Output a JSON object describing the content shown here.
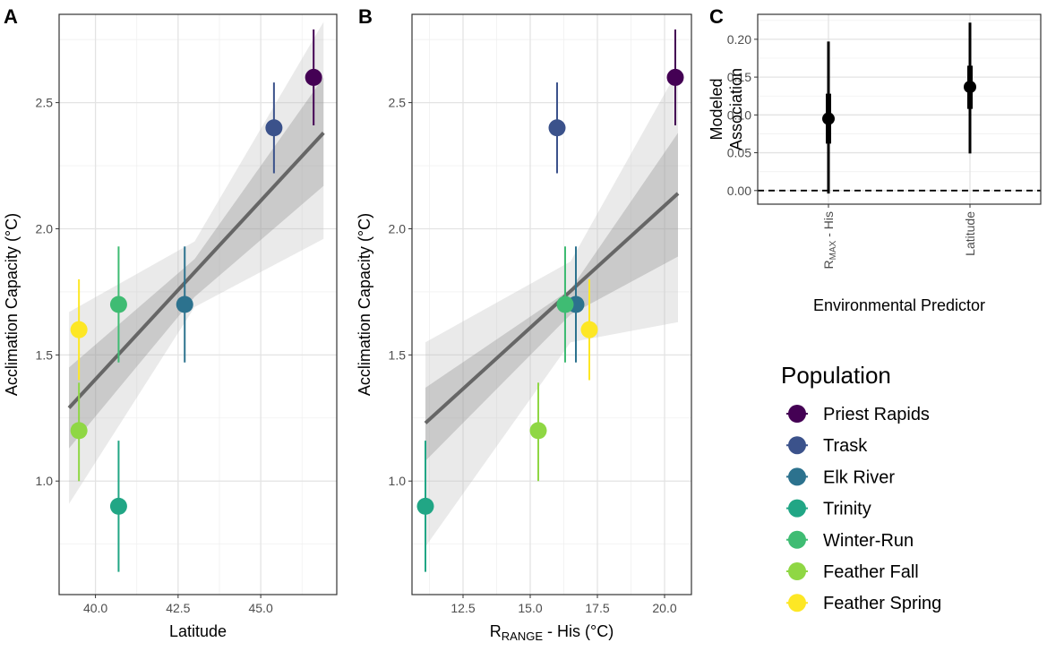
{
  "figure": {
    "legend": {
      "title": "Population",
      "items": [
        {
          "label": "Priest Rapids",
          "color": "#440154"
        },
        {
          "label": "Trask",
          "color": "#3b528b"
        },
        {
          "label": "Elk River",
          "color": "#2c728e"
        },
        {
          "label": "Trinity",
          "color": "#21a685"
        },
        {
          "label": "Winter-Run",
          "color": "#3fbc73"
        },
        {
          "label": "Feather Fall",
          "color": "#8fd744"
        },
        {
          "label": "Feather Spring",
          "color": "#fde725"
        }
      ]
    }
  },
  "chart_data": [
    {
      "panel": "A",
      "type": "scatter",
      "xlabel": "Latitude",
      "ylabel": "Acclimation Capacity (°C)",
      "xlim": [
        38.9,
        47.3
      ],
      "ylim": [
        0.55,
        2.85
      ],
      "x_ticks": [
        "40.0",
        "42.5",
        "45.0"
      ],
      "y_ticks": [
        "1.0",
        "1.5",
        "2.0",
        "2.5"
      ],
      "x_tick_values": [
        40.0,
        42.5,
        45.0
      ],
      "y_tick_values": [
        1.0,
        1.5,
        2.0,
        2.5
      ],
      "points": [
        {
          "population": "Priest Rapids",
          "x": 46.6,
          "y": 2.6,
          "lo": 2.41,
          "hi": 2.79
        },
        {
          "population": "Trask",
          "x": 45.4,
          "y": 2.4,
          "lo": 2.22,
          "hi": 2.58
        },
        {
          "population": "Elk River",
          "x": 42.7,
          "y": 1.7,
          "lo": 1.47,
          "hi": 1.93
        },
        {
          "population": "Trinity",
          "x": 40.7,
          "y": 0.9,
          "lo": 0.64,
          "hi": 1.16
        },
        {
          "population": "Winter-Run",
          "x": 40.7,
          "y": 1.7,
          "lo": 1.47,
          "hi": 1.93
        },
        {
          "population": "Feather Fall",
          "x": 39.5,
          "y": 1.2,
          "lo": 1.0,
          "hi": 1.39
        },
        {
          "population": "Feather Spring",
          "x": 39.5,
          "y": 1.6,
          "lo": 1.4,
          "hi": 1.8
        }
      ],
      "fit": {
        "x": [
          39.2,
          46.9
        ],
        "y": [
          1.29,
          2.38
        ]
      },
      "ribbon_outer": {
        "x": [
          39.2,
          43.0,
          46.9
        ],
        "upper": [
          1.67,
          1.95,
          2.82
        ],
        "lower": [
          0.91,
          1.69,
          1.96
        ]
      },
      "ribbon_inner": {
        "x": [
          39.2,
          43.0,
          46.9
        ],
        "upper": [
          1.45,
          1.88,
          2.6
        ],
        "lower": [
          1.13,
          1.73,
          2.17
        ]
      }
    },
    {
      "panel": "B",
      "type": "scatter",
      "xlabel_main": "R",
      "xlabel_sub": "RANGE",
      "xlabel_rest": " - His (°C)",
      "ylabel": "Acclimation Capacity (°C)",
      "xlim": [
        10.6,
        21.0
      ],
      "ylim": [
        0.55,
        2.85
      ],
      "x_ticks": [
        "12.5",
        "15.0",
        "17.5",
        "20.0"
      ],
      "y_ticks": [
        "1.0",
        "1.5",
        "2.0",
        "2.5"
      ],
      "x_tick_values": [
        12.5,
        15.0,
        17.5,
        20.0
      ],
      "y_tick_values": [
        1.0,
        1.5,
        2.0,
        2.5
      ],
      "points": [
        {
          "population": "Priest Rapids",
          "x": 20.4,
          "y": 2.6,
          "lo": 2.41,
          "hi": 2.79
        },
        {
          "population": "Trask",
          "x": 16.0,
          "y": 2.4,
          "lo": 2.22,
          "hi": 2.58
        },
        {
          "population": "Elk River",
          "x": 16.7,
          "y": 1.7,
          "lo": 1.47,
          "hi": 1.93
        },
        {
          "population": "Trinity",
          "x": 11.1,
          "y": 0.9,
          "lo": 0.64,
          "hi": 1.16
        },
        {
          "population": "Winter-Run",
          "x": 16.3,
          "y": 1.7,
          "lo": 1.47,
          "hi": 1.93
        },
        {
          "population": "Feather Fall",
          "x": 15.3,
          "y": 1.2,
          "lo": 1.0,
          "hi": 1.39
        },
        {
          "population": "Feather Spring",
          "x": 17.2,
          "y": 1.6,
          "lo": 1.4,
          "hi": 1.8
        }
      ],
      "fit": {
        "x": [
          11.1,
          20.5
        ],
        "y": [
          1.23,
          2.14
        ]
      },
      "ribbon_outer": {
        "x": [
          11.1,
          16.5,
          20.5
        ],
        "upper": [
          1.55,
          1.87,
          2.63
        ],
        "lower": [
          0.74,
          1.55,
          1.63
        ]
      },
      "ribbon_inner": {
        "x": [
          11.1,
          16.5,
          20.5
        ],
        "upper": [
          1.37,
          1.76,
          2.38
        ],
        "lower": [
          1.08,
          1.66,
          1.89
        ]
      }
    },
    {
      "panel": "C",
      "type": "scatter",
      "xlabel": "Environmental Predictor",
      "ylabel_line1": "Modeled",
      "ylabel_line2": "Association",
      "ylim": [
        -0.018,
        0.233
      ],
      "y_ticks": [
        "0.00",
        "0.05",
        "0.10",
        "0.15",
        "0.20"
      ],
      "y_tick_values": [
        0.0,
        0.05,
        0.1,
        0.15,
        0.2
      ],
      "categories": [
        {
          "label_main": "R",
          "label_sub": "MAX",
          "label_rest": " - His",
          "estimate": 0.095,
          "lo50": 0.062,
          "hi50": 0.128,
          "lo95": -0.004,
          "hi95": 0.197
        },
        {
          "label_main": "Latitude",
          "label_sub": "",
          "label_rest": "",
          "estimate": 0.137,
          "lo50": 0.108,
          "hi50": 0.165,
          "lo95": 0.049,
          "hi95": 0.222
        }
      ],
      "reference_line": 0
    }
  ]
}
